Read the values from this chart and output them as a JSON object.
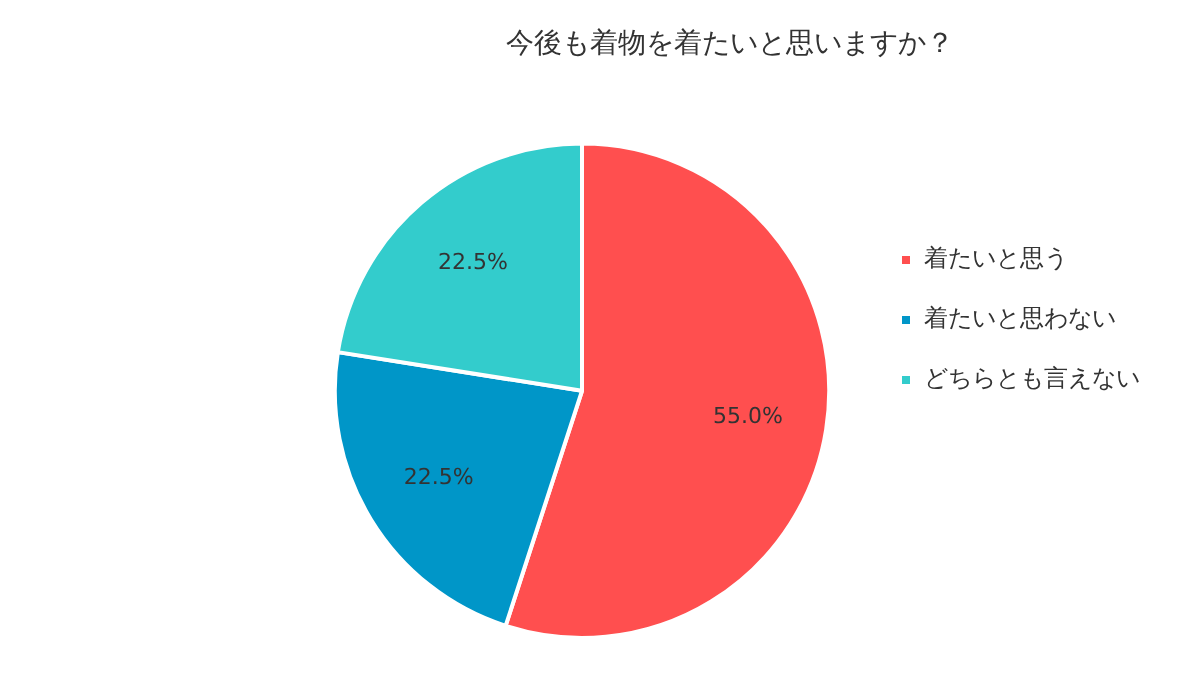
{
  "chart_data": {
    "type": "pie",
    "title": "今後も着物を着たいと思いますか？",
    "categories": [
      "着たいと思う",
      "着たいと思わない",
      "どちらとも言えない"
    ],
    "values": [
      55.0,
      22.5,
      22.5
    ],
    "colors": [
      "#ff4f4f",
      "#0096c8",
      "#33cccc"
    ],
    "value_labels": [
      "55.0%",
      "22.5%",
      "22.5%"
    ],
    "legend": "right"
  }
}
